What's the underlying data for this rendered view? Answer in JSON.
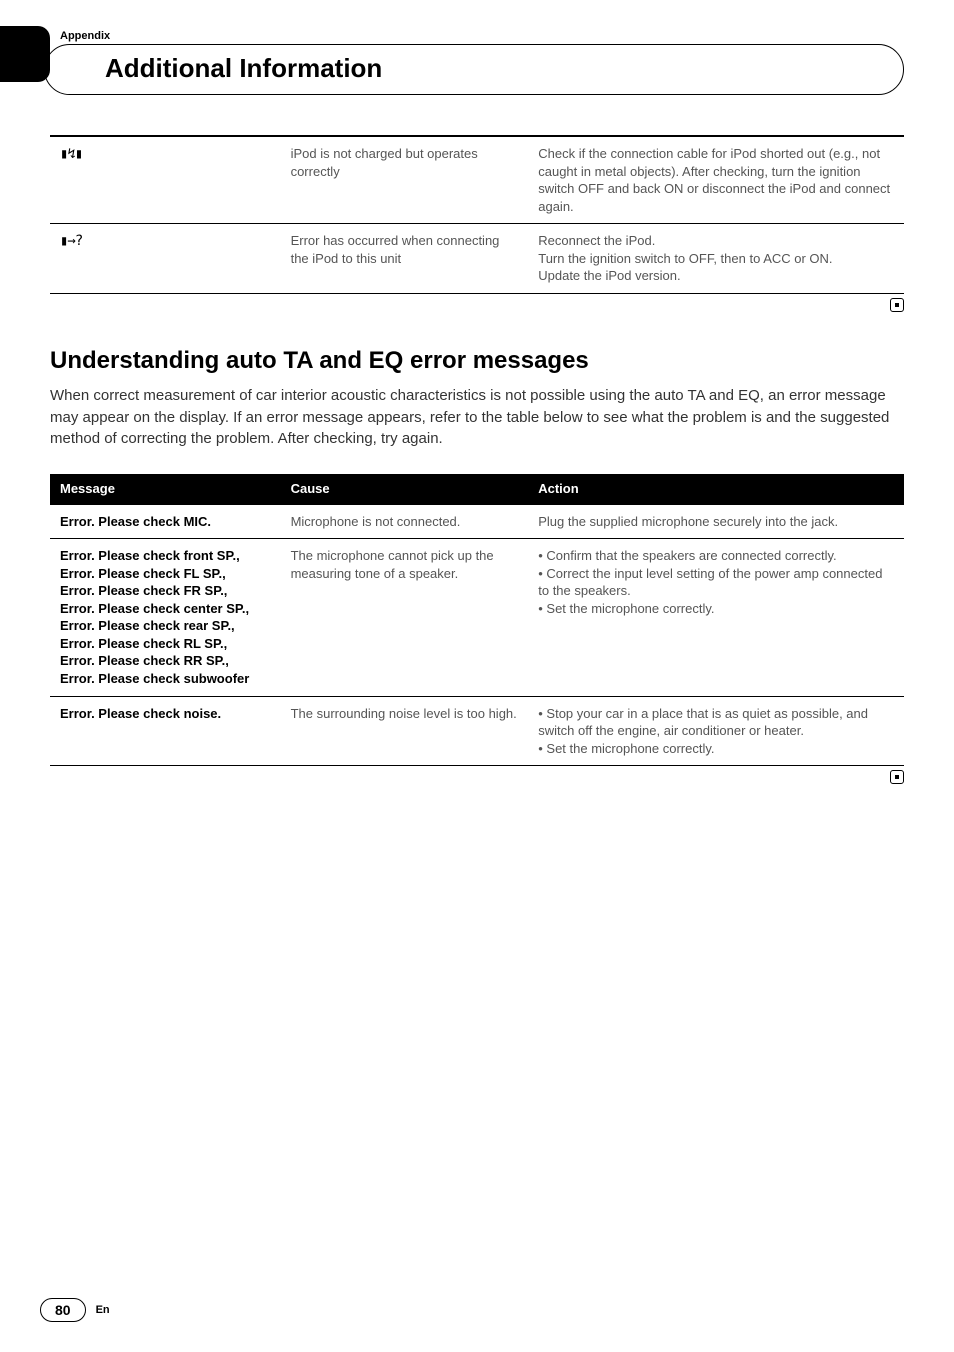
{
  "header": {
    "appendix_label": "Appendix",
    "title": "Additional Information"
  },
  "ipod_table": {
    "columns": [
      "",
      "",
      ""
    ],
    "rows": [
      {
        "icon_alt": "battery-charge-error-icon",
        "icon_glyph": "▮↯▮",
        "cause": "iPod is not charged but operates correctly",
        "action": "Check if the connection cable for iPod shorted out (e.g., not caught in metal objects). After checking, turn the ignition switch OFF and back ON or disconnect the iPod and connect again."
      },
      {
        "icon_alt": "connect-error-icon",
        "icon_glyph": "▮→?",
        "cause": "Error has occurred when connecting the iPod to this unit",
        "action": "Reconnect the iPod.\nTurn the ignition switch to OFF, then to ACC or ON.\nUpdate the iPod version."
      }
    ]
  },
  "section2": {
    "heading": "Understanding auto TA and EQ error messages",
    "intro": "When correct measurement of car interior acoustic characteristics is not possible using the auto TA and EQ, an error message may appear on the display. If an error message appears, refer to the table below to see what the problem is and the suggested method of correcting the problem. After checking, try again.",
    "columns": {
      "c1": "Message",
      "c2": "Cause",
      "c3": "Action"
    },
    "rows": [
      {
        "message": "Error. Please check MIC.",
        "cause": "Microphone is not connected.",
        "action": "Plug the supplied microphone securely into the jack."
      },
      {
        "message_lines": [
          "Error. Please check front SP.,",
          "Error. Please check FL SP.,",
          "Error. Please check FR SP.,",
          "Error. Please check center SP.,",
          "Error. Please check rear SP.,",
          "Error. Please check RL SP.,",
          "Error. Please check RR SP.,",
          "Error. Please check subwoofer"
        ],
        "cause": "The microphone cannot pick up the measuring tone of a speaker.",
        "action_bullets": [
          "Confirm that the speakers are connected correctly.",
          "Correct the input level setting of the power amp connected to the speakers.",
          "Set the microphone correctly."
        ]
      },
      {
        "message": "Error. Please check noise.",
        "cause": "The surrounding noise level is too high.",
        "action_bullets": [
          "Stop your car in a place that is as quiet as possible, and switch off the engine, air conditioner or heater.",
          "Set the microphone correctly."
        ]
      }
    ]
  },
  "footer": {
    "page": "80",
    "lang": "En"
  }
}
